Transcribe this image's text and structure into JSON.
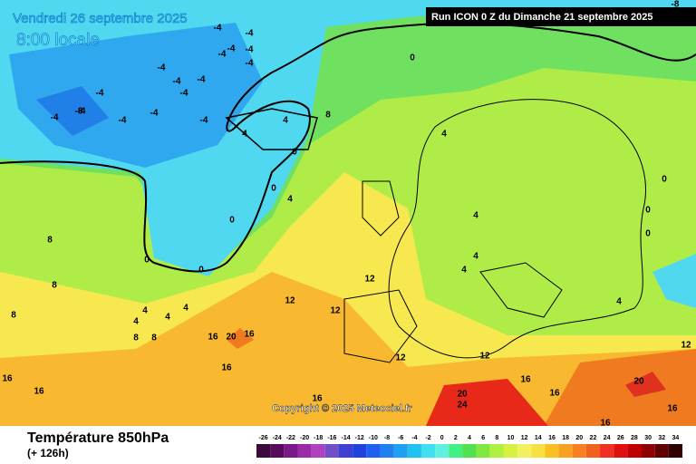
{
  "header": {
    "date": "Vendredi 26 septembre 2025",
    "time": "8:00 locale",
    "run": "Run ICON 0 Z du Dimanche 21 septembre 2025"
  },
  "map": {
    "copyright": "Copyright © 2025 Meteociel.fr",
    "contour_labels": [
      -4,
      -4,
      -4,
      -4,
      -4,
      -4,
      -4,
      -4,
      -4,
      -4,
      -4,
      -4,
      -4,
      -4,
      -4,
      -4,
      -8,
      -8,
      0,
      0,
      0,
      0,
      0,
      0,
      0,
      0,
      0,
      4,
      4,
      4,
      4,
      4,
      4,
      4,
      4,
      4,
      4,
      4,
      4,
      8,
      8,
      8,
      8,
      8,
      8,
      12,
      12,
      12,
      12,
      12,
      12,
      16,
      16,
      16,
      16,
      16,
      16,
      16,
      16,
      16,
      16,
      20,
      20,
      20,
      24
    ]
  },
  "footer": {
    "title": "Température 850hPa",
    "lead": "(+ 126h)"
  },
  "legend": {
    "values": [
      -26,
      -24,
      -22,
      -20,
      -18,
      -16,
      -14,
      -12,
      -10,
      -8,
      -6,
      -4,
      -2,
      0,
      2,
      4,
      6,
      8,
      10,
      12,
      14,
      16,
      18,
      20,
      22,
      24,
      26,
      28,
      30,
      32,
      34
    ],
    "colors": [
      "#3a0a3a",
      "#5a0a5a",
      "#7a1a8a",
      "#9a2aa8",
      "#b040c0",
      "#7050c8",
      "#4040d0",
      "#2040e0",
      "#2060f0",
      "#2080f0",
      "#20a0f0",
      "#20c0f0",
      "#40e0f0",
      "#60f0e0",
      "#40f080",
      "#50e050",
      "#80e840",
      "#b0f040",
      "#d8f040",
      "#f0f060",
      "#f8e040",
      "#f8c020",
      "#f8a020",
      "#f88020",
      "#f06020",
      "#f03020",
      "#e01010",
      "#c00000",
      "#900000",
      "#600000",
      "#300000"
    ]
  }
}
